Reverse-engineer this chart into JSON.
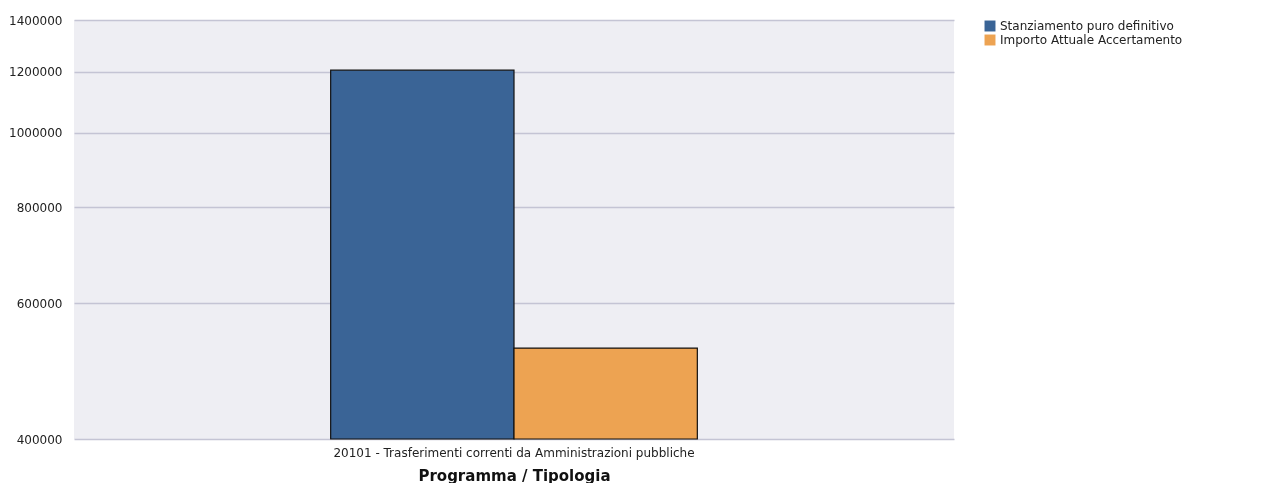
{
  "chart_data": {
    "type": "bar",
    "xlabel": "Programma  / Tipologia",
    "categories": [
      "20101 - Trasferimenti correnti da Amministrazioni pubbliche"
    ],
    "series": [
      {
        "name": "Stanziamento puro definitivo",
        "color": "#3a6496",
        "values": [
          1205000
        ]
      },
      {
        "name": "Importo Attuale Accertamento",
        "color": "#eda352",
        "values": [
          525000
        ]
      }
    ],
    "log": true,
    "ylim": [
      400000,
      1400000
    ],
    "yticks": [
      400000,
      600000,
      800000,
      1000000,
      1200000,
      1400000
    ],
    "grid": "y",
    "legend": "right"
  }
}
